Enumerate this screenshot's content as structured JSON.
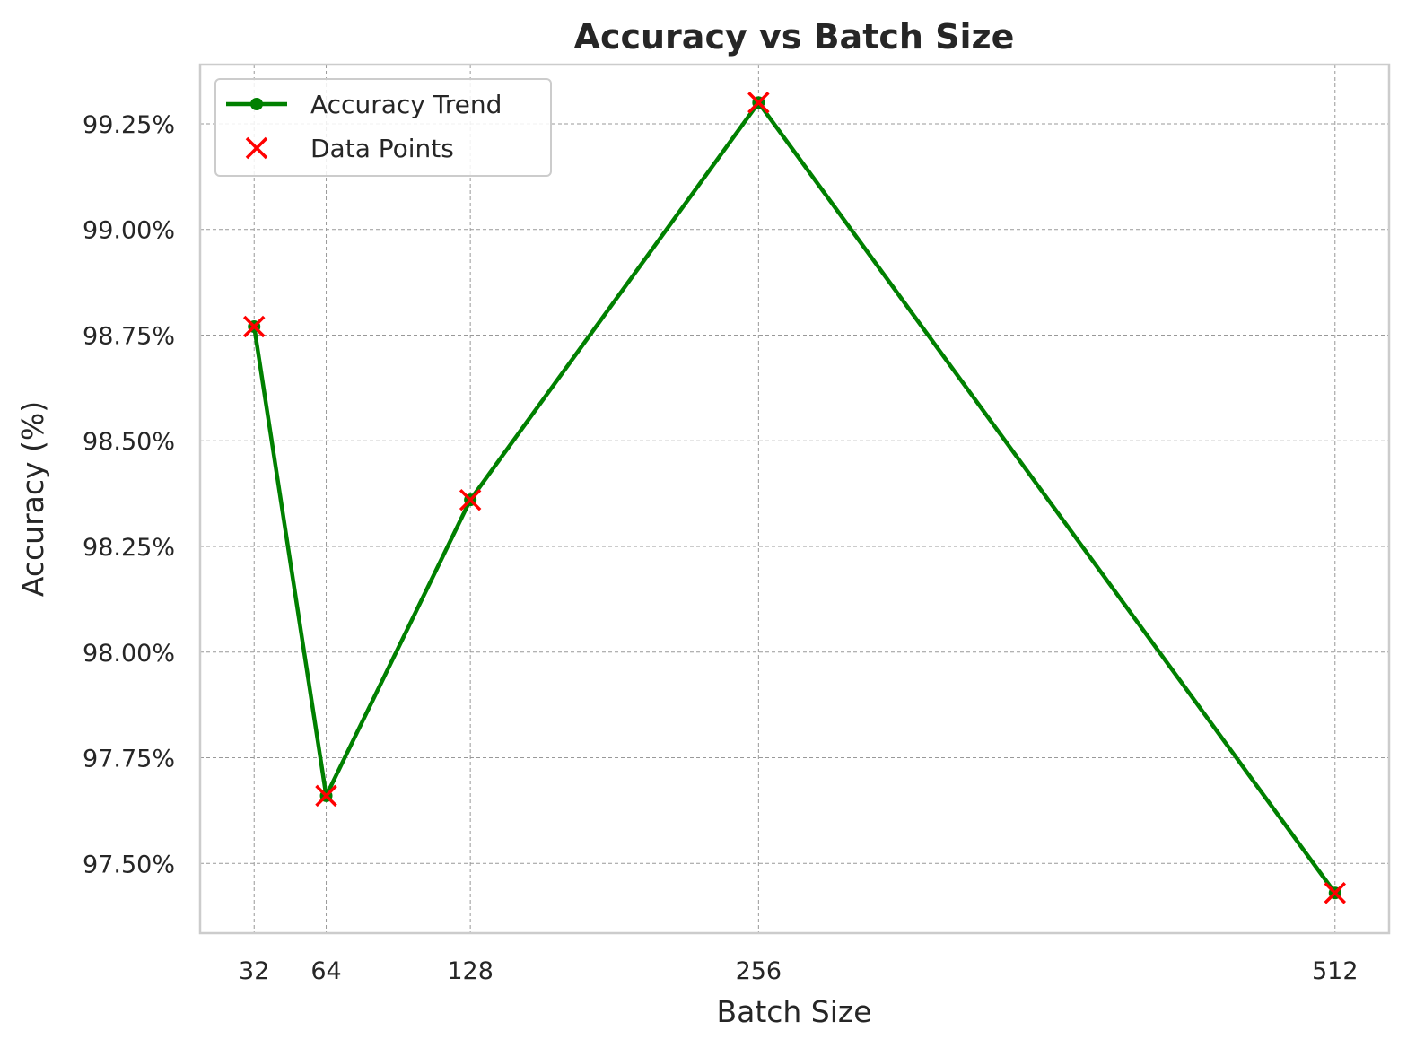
{
  "chart_data": {
    "type": "line",
    "title": "Accuracy vs Batch Size",
    "xlabel": "Batch Size",
    "ylabel": "Accuracy (%)",
    "x": [
      32,
      64,
      128,
      256,
      512
    ],
    "x_tick_labels": [
      "32",
      "64",
      "128",
      "256",
      "512"
    ],
    "y_ticks": [
      97.5,
      97.75,
      98.0,
      98.25,
      98.5,
      98.75,
      99.0,
      99.25
    ],
    "y_tick_labels": [
      "97.50%",
      "97.75%",
      "98.00%",
      "98.25%",
      "98.50%",
      "98.75%",
      "99.00%",
      "99.25%"
    ],
    "xlim": [
      8,
      536
    ],
    "ylim": [
      97.335,
      99.39
    ],
    "grid": true,
    "legend_position": "top-left",
    "series": [
      {
        "name": "Accuracy Trend",
        "kind": "line",
        "marker": "circle",
        "color": "#008000",
        "values": [
          98.77,
          97.66,
          98.36,
          99.3,
          97.43
        ]
      },
      {
        "name": "Data Points",
        "kind": "scatter",
        "marker": "x",
        "color": "#ff0000",
        "values": [
          98.77,
          97.66,
          98.36,
          99.3,
          97.43
        ]
      }
    ]
  }
}
